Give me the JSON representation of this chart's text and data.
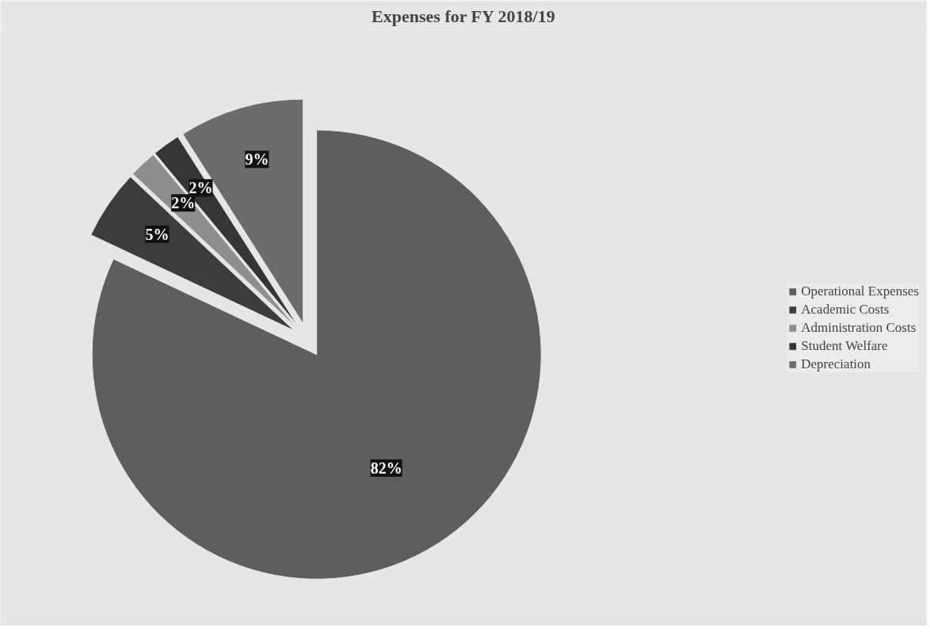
{
  "chart_data": {
    "type": "pie",
    "title": "Expenses for FY 2018/19",
    "categories": [
      "Operational Expenses",
      "Academic Costs",
      "Administration Costs",
      "Student Welfare",
      "Depreciation"
    ],
    "values": [
      82,
      5,
      2,
      2,
      9
    ],
    "colors": [
      "#5e5e5e",
      "#3c3c3c",
      "#8e8e8e",
      "#353535",
      "#6c6c6c"
    ],
    "value_labels": [
      "82%",
      "5%",
      "2%",
      "2%",
      "9%"
    ],
    "legend": "right"
  }
}
